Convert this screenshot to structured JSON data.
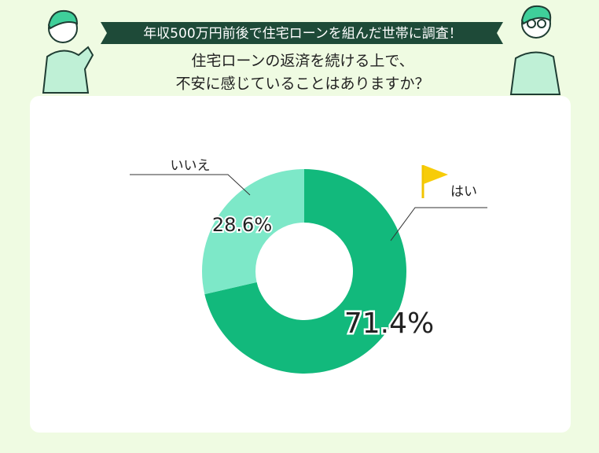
{
  "chart_data": {
    "type": "pie",
    "title": "年収500万円前後で住宅ローンを組んだ世帯に調査！",
    "question": [
      "住宅ローンの返済を続ける上で、",
      "不安に感じていることはありますか？"
    ],
    "categories": [
      "はい",
      "いいえ"
    ],
    "values": [
      71.4,
      28.6
    ],
    "value_labels": [
      "71.4%",
      "28.6%"
    ],
    "colors": [
      "#12b97c",
      "#7de8c8"
    ]
  }
}
